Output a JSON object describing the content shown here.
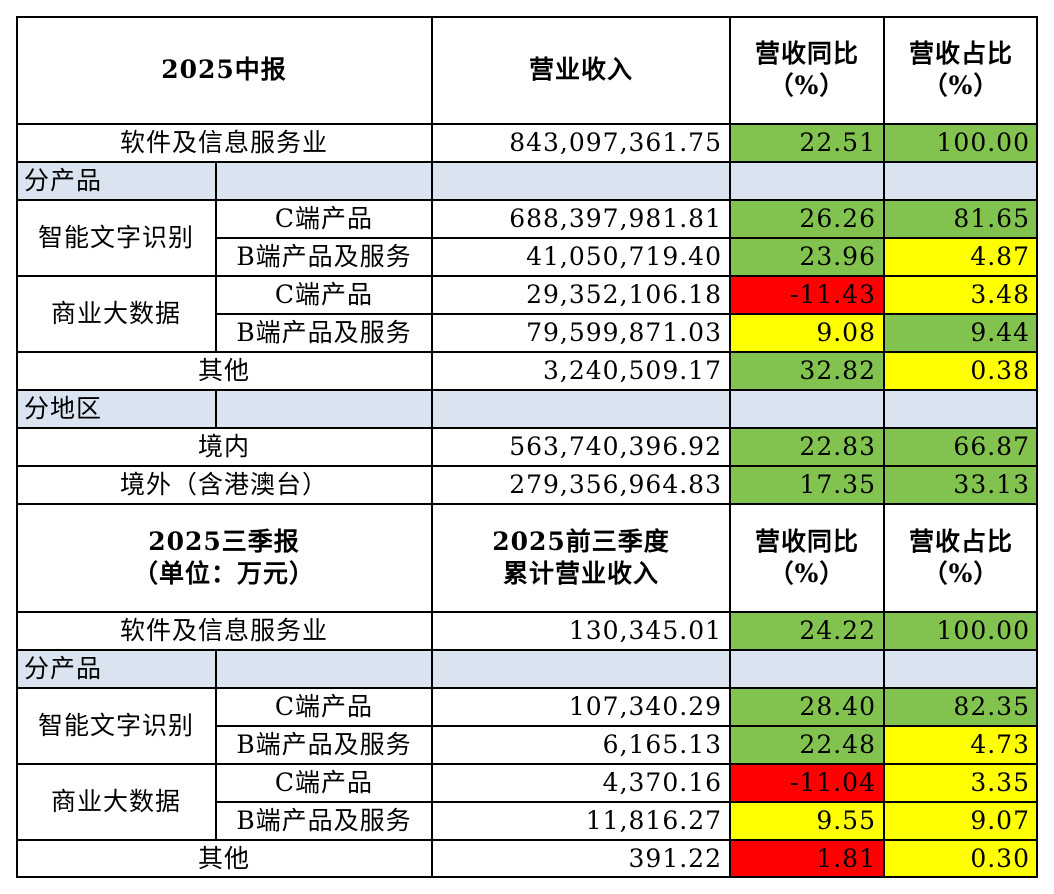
{
  "colors": {
    "green": "#82c34f",
    "yellow": "#ffff00",
    "red": "#ff0000",
    "section_bg": "#dae3f0"
  },
  "h1": {
    "col1": "2025中报",
    "col2": "营业收入",
    "col3_line1": "营收同比",
    "col3_line2": "（%）",
    "col4_line1": "营收占比",
    "col4_line2": "（%）"
  },
  "t1": {
    "total": {
      "label": "软件及信息服务业",
      "revenue": "843,097,361.75",
      "yoy": "22.51",
      "share": "100.00"
    },
    "by_product": "分产品",
    "ocr": {
      "label": "智能文字识别",
      "c": {
        "label": "C端产品",
        "revenue": "688,397,981.81",
        "yoy": "26.26",
        "share": "81.65"
      },
      "b": {
        "label": "B端产品及服务",
        "revenue": "41,050,719.40",
        "yoy": "23.96",
        "share": "4.87"
      }
    },
    "bigdata": {
      "label": "商业大数据",
      "c": {
        "label": "C端产品",
        "revenue": "29,352,106.18",
        "yoy": "-11.43",
        "share": "3.48"
      },
      "b": {
        "label": "B端产品及服务",
        "revenue": "79,599,871.03",
        "yoy": "9.08",
        "share": "9.44"
      }
    },
    "other": {
      "label": "其他",
      "revenue": "3,240,509.17",
      "yoy": "32.82",
      "share": "0.38"
    },
    "by_region": "分地区",
    "domestic": {
      "label": "境内",
      "revenue": "563,740,396.92",
      "yoy": "22.83",
      "share": "66.87"
    },
    "overseas": {
      "label": "境外（含港澳台）",
      "revenue": "279,356,964.83",
      "yoy": "17.35",
      "share": "33.13"
    }
  },
  "h2": {
    "col1_line1": "2025三季报",
    "col1_line2": "（单位：万元）",
    "col2_line1": "2025前三季度",
    "col2_line2": "累计营业收入",
    "col3_line1": "营收同比",
    "col3_line2": "（%）",
    "col4_line1": "营收占比",
    "col4_line2": "（%）"
  },
  "t2": {
    "total": {
      "label": "软件及信息服务业",
      "revenue": "130,345.01",
      "yoy": "24.22",
      "share": "100.00"
    },
    "by_product": "分产品",
    "ocr": {
      "label": "智能文字识别",
      "c": {
        "label": "C端产品",
        "revenue": "107,340.29",
        "yoy": "28.40",
        "share": "82.35"
      },
      "b": {
        "label": "B端产品及服务",
        "revenue": "6,165.13",
        "yoy": "22.48",
        "share": "4.73"
      }
    },
    "bigdata": {
      "label": "商业大数据",
      "c": {
        "label": "C端产品",
        "revenue": "4,370.16",
        "yoy": "-11.04",
        "share": "3.35"
      },
      "b": {
        "label": "B端产品及服务",
        "revenue": "11,816.27",
        "yoy": "9.55",
        "share": "9.07"
      }
    },
    "other": {
      "label": "其他",
      "revenue": "391.22",
      "yoy": "1.81",
      "share": "0.30"
    }
  }
}
